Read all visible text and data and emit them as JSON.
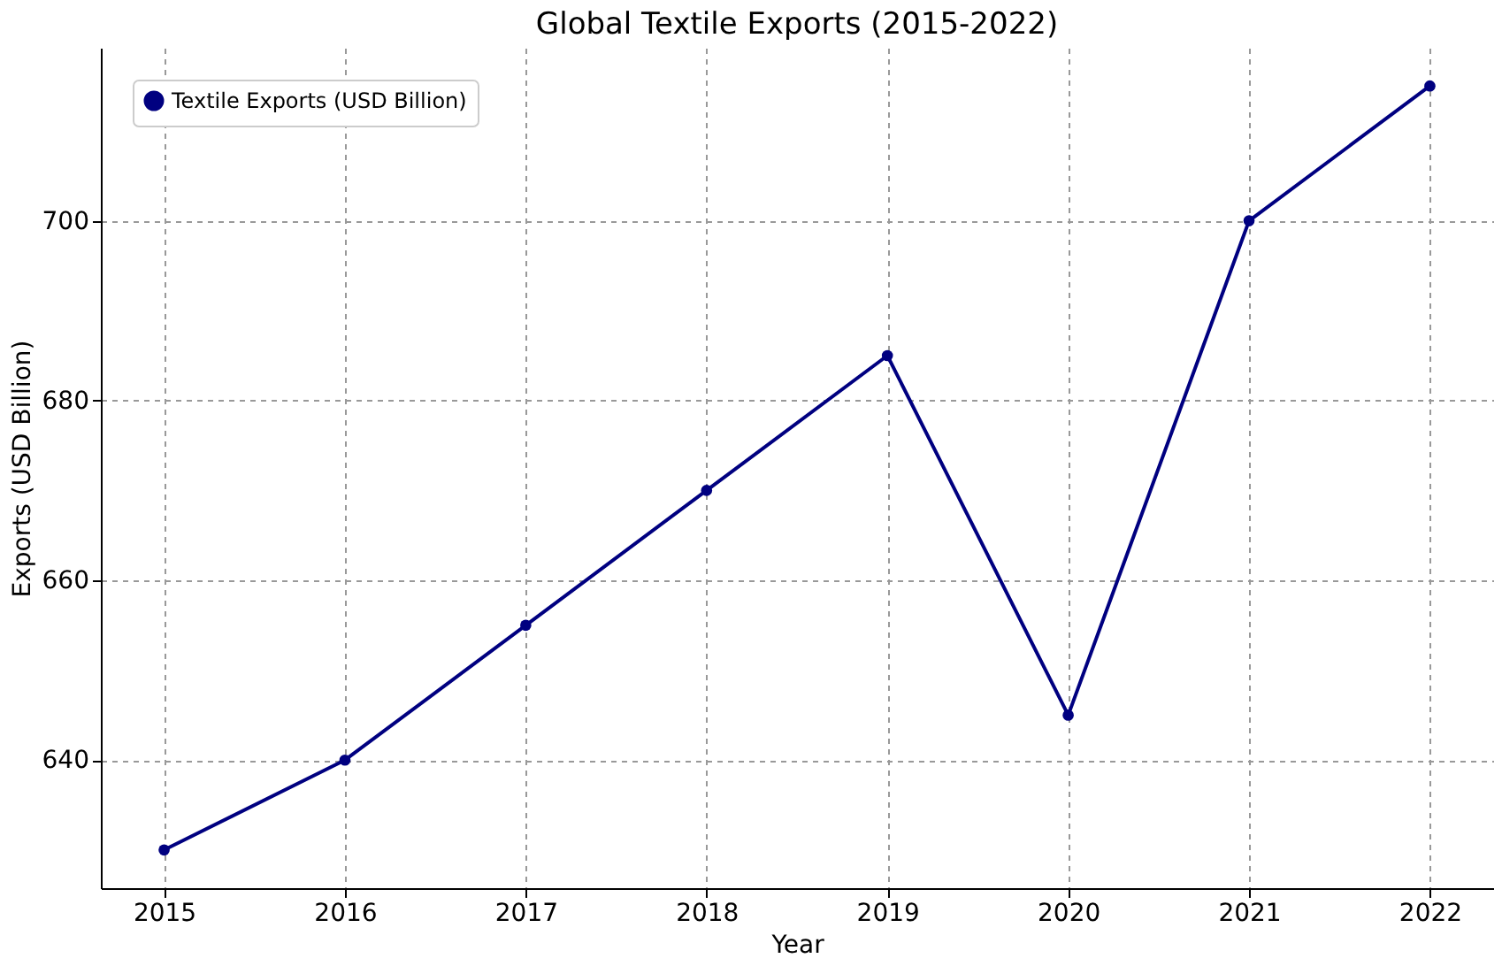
{
  "chart_data": {
    "type": "line",
    "title": "Global Textile Exports (2015-2022)",
    "xlabel": "Year",
    "ylabel": "Exports (USD Billion)",
    "x": [
      2015,
      2016,
      2017,
      2018,
      2019,
      2020,
      2021,
      2022
    ],
    "series": [
      {
        "name": "Textile Exports (USD Billion)",
        "color": "#000080",
        "values": [
          630,
          640,
          655,
          670,
          685,
          645,
          700,
          715
        ]
      }
    ],
    "xlim": [
      2014.65,
      2022.35
    ],
    "xticks": [
      2015,
      2016,
      2017,
      2018,
      2019,
      2020,
      2021,
      2022
    ],
    "ylim": [
      625.75,
      719.25
    ],
    "yticks": [
      640,
      660,
      680,
      700
    ],
    "grid": true,
    "legend": "top left",
    "marker": "circle",
    "line_style": "solid"
  }
}
